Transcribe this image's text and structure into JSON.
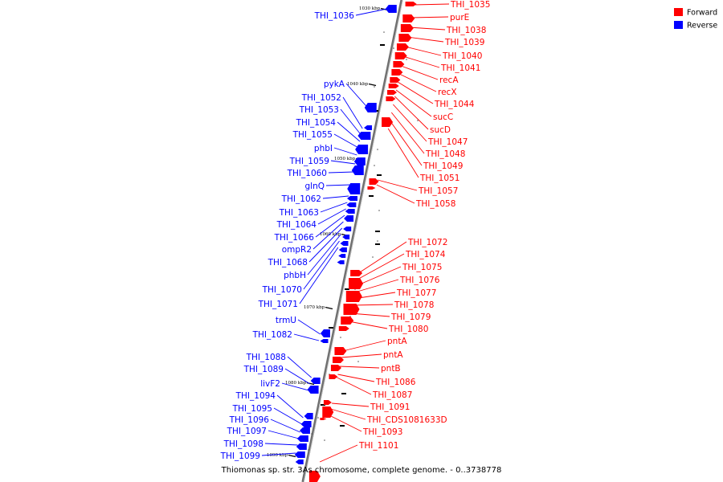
{
  "caption": "Thiomonas sp. str. 3As chromosome, complete genome. - 0..3738778",
  "legend": [
    {
      "label": "Forward",
      "color": "#ff0000"
    },
    {
      "label": "Reverse",
      "color": "#0000ff"
    }
  ],
  "colors": {
    "forward": "#ff0000",
    "reverse": "#0000ff",
    "backbone": "#808080"
  },
  "ticks": [
    "1030 kbp",
    "1040 kbp",
    "1050 kbp",
    "1060 kbp",
    "1070 kbp",
    "1080 kbp",
    "1090 kbp"
  ],
  "forward_labels": [
    "THI_1035",
    "purE",
    "THI_1038",
    "THI_1039",
    "THI_1040",
    "THI_1041",
    "recA",
    "recX",
    "THI_1044",
    "sucC",
    "sucD",
    "THI_1047",
    "THI_1048",
    "THI_1049",
    "THI_1051",
    "THI_1057",
    "THI_1058",
    "THI_1072",
    "THI_1074",
    "THI_1075",
    "THI_1076",
    "THI_1077",
    "THI_1078",
    "THI_1079",
    "THI_1080",
    "pntA",
    "pntA",
    "pntB",
    "THI_1086",
    "THI_1087",
    "THI_1091",
    "THI_CDS1081633D",
    "THI_1093",
    "THI_1101"
  ],
  "reverse_labels": [
    "THI_1036",
    "pykA",
    "THI_1052",
    "THI_1053",
    "THI_1054",
    "THI_1055",
    "phbI",
    "THI_1059",
    "THI_1060",
    "glnQ",
    "THI_1062",
    "THI_1063",
    "THI_1064",
    "THI_1066",
    "ompR2",
    "THI_1068",
    "phbH",
    "THI_1070",
    "THI_1071",
    "trmU",
    "THI_1082",
    "THI_1088",
    "THI_1089",
    "livF2",
    "THI_1094",
    "THI_1095",
    "THI_1096",
    "THI_1097",
    "THI_1098",
    "THI_1099"
  ]
}
